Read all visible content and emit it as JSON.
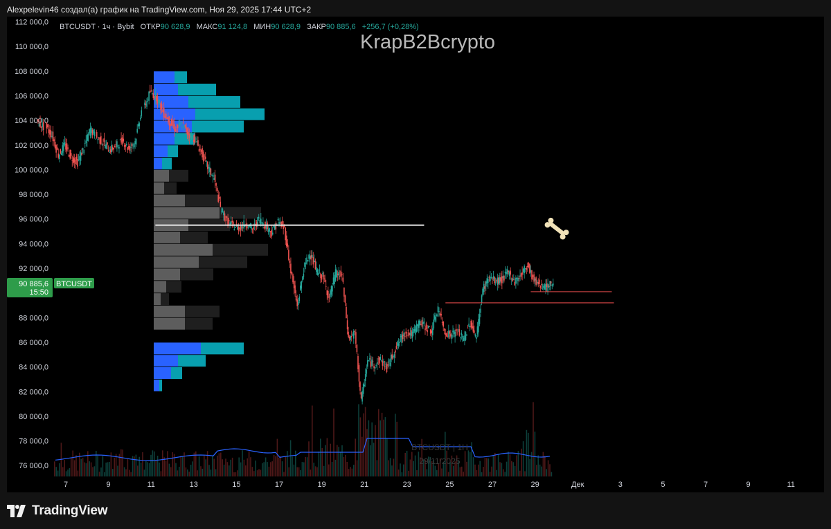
{
  "header": {
    "caption": "Alexpelevin46 создал(а) график на TradingView.com, Ноя 29, 2025 17:44 UTC+2"
  },
  "legend": {
    "symbol": "BTCUSDT · 1ч · Bybit",
    "open_label": "ОТКР",
    "open_value": "90 628,9",
    "high_label": "МАКС",
    "high_value": "91 124,8",
    "low_label": "МИН",
    "low_value": "90 628,9",
    "close_label": "ЗАКР",
    "close_value": "90 885,6",
    "change": "+256,7 (+0,28%)"
  },
  "watermark": {
    "author": "KrapB2Bcrypto",
    "line1": "BTCUSDT | 1H",
    "line2": "29/11/2025"
  },
  "price_badge": {
    "price": "90 885,6",
    "time": "15:50",
    "symbol": "BTCUSDT"
  },
  "brand": {
    "name": "TradingView"
  },
  "colors": {
    "up": "#26a69a",
    "down": "#ef5350",
    "badge": "#2e9c4a",
    "profile_blue": "#2962ff",
    "profile_teal": "#089faf",
    "profile_gray": "#5d5d5d",
    "profile_dark": "#1f1f1f",
    "level_white": "#e6e6e6",
    "level_red": "#e04a4a",
    "volume_ma": "#2962ff"
  },
  "chart_data": {
    "type": "line",
    "price_axis": {
      "labels": [
        "112 000,0",
        "110 000,0",
        "108 000,0",
        "106 000,0",
        "104 000,0",
        "102 000,0",
        "100 000,0",
        "98 000,0",
        "96 000,0",
        "94 000,0",
        "92 000,0",
        "88 000,0",
        "86 000,0",
        "84 000,0",
        "82 000,0",
        "80 000,0",
        "78 000,0",
        "76 000,0"
      ],
      "ylim": [
        75500,
        112500
      ]
    },
    "time_axis": {
      "labels": [
        "7",
        "9",
        "11",
        "13",
        "15",
        "17",
        "19",
        "21",
        "23",
        "25",
        "27",
        "29",
        "Дек",
        "3",
        "5",
        "7",
        "9",
        "11"
      ],
      "range": [
        "Nov 6",
        "Dec 12"
      ]
    },
    "series": [
      {
        "x": [
          6.0,
          6.4,
          6.7,
          7.0,
          7.3,
          7.6,
          7.9,
          8.2,
          8.5,
          8.8,
          9.1,
          9.4,
          9.7,
          10.0,
          10.3,
          10.6,
          11.0,
          11.3,
          11.6,
          11.9,
          12.2,
          12.5,
          12.8,
          13.1,
          13.4,
          13.7,
          14.0,
          14.3,
          14.6,
          14.9,
          15.2,
          15.5,
          15.8,
          16.1,
          16.4,
          16.7,
          17.0,
          17.3,
          17.6,
          17.9,
          18.2,
          18.5,
          18.8,
          19.1,
          19.4,
          19.7,
          20.0,
          20.3,
          20.6,
          20.9,
          21.2,
          21.5,
          21.8,
          22.1,
          22.4,
          22.7,
          23.0,
          23.3,
          23.6,
          23.9,
          24.2,
          24.5,
          24.8,
          25.1,
          25.4,
          25.7,
          26.0,
          26.3,
          26.6,
          26.9,
          27.2,
          27.5,
          27.8,
          28.1,
          28.4,
          28.7,
          29.0,
          29.3,
          29.6,
          29.9
        ],
        "close": [
          103500,
          102800,
          101200,
          102000,
          101000,
          100600,
          101800,
          103300,
          102600,
          102200,
          101600,
          101900,
          102400,
          101700,
          102300,
          104900,
          106300,
          105900,
          104700,
          103900,
          103300,
          103700,
          102900,
          102500,
          101400,
          100200,
          99300,
          96900,
          95800,
          95400,
          95300,
          95700,
          95100,
          96000,
          95500,
          94900,
          95800,
          95200,
          91800,
          88900,
          91900,
          93300,
          91800,
          91300,
          89600,
          91600,
          91400,
          86300,
          86700,
          81200,
          84500,
          84200,
          84600,
          83900,
          85100,
          86100,
          86900,
          86600,
          87600,
          87300,
          86900,
          88800,
          86900,
          86600,
          86900,
          86200,
          87600,
          86400,
          90300,
          91300,
          90900,
          91100,
          91700,
          90900,
          91500,
          92300,
          91000,
          90700,
          90400,
          90886
        ]
      }
    ],
    "volume_profile": [
      {
        "price": 107000,
        "up": 30,
        "down": 18
      },
      {
        "price": 106000,
        "up": 35,
        "down": 55
      },
      {
        "price": 105000,
        "up": 50,
        "down": 75
      },
      {
        "price": 104000,
        "up": 60,
        "down": 100
      },
      {
        "price": 103000,
        "up": 55,
        "down": 75
      },
      {
        "price": 102000,
        "up": 30,
        "down": 30
      },
      {
        "price": 101000,
        "up": 20,
        "down": 15
      },
      {
        "price": 100000,
        "up": 12,
        "down": 14
      },
      {
        "price": 99000,
        "up": 22,
        "down": 28
      },
      {
        "price": 98000,
        "up": 15,
        "down": 18
      },
      {
        "price": 97000,
        "up": 45,
        "down": 50
      },
      {
        "price": 96000,
        "up": 95,
        "down": 60
      },
      {
        "price": 95000,
        "up": 50,
        "down": 60
      },
      {
        "price": 94000,
        "up": 38,
        "down": 40
      },
      {
        "price": 93000,
        "up": 85,
        "down": 80
      },
      {
        "price": 92000,
        "up": 65,
        "down": 70
      },
      {
        "price": 91000,
        "up": 38,
        "down": 48
      },
      {
        "price": 90000,
        "up": 18,
        "down": 22
      },
      {
        "price": 89000,
        "up": 10,
        "down": 12
      },
      {
        "price": 88000,
        "up": 45,
        "down": 50
      },
      {
        "price": 87000,
        "up": 45,
        "down": 40
      },
      {
        "price": 85000,
        "up": 68,
        "down": 62
      },
      {
        "price": 84000,
        "up": 35,
        "down": 40
      },
      {
        "price": 83000,
        "up": 25,
        "down": 16
      },
      {
        "price": 82000,
        "up": 8,
        "down": 4
      }
    ],
    "levels": [
      {
        "price": 95500,
        "from": 11.2,
        "to": 23.8,
        "color": "white"
      },
      {
        "price": 90100,
        "from": 28.8,
        "to": 32.6,
        "color": "red"
      },
      {
        "price": 89200,
        "from": 24.8,
        "to": 32.7,
        "color": "red"
      }
    ],
    "ylabel": "",
    "xlabel": ""
  }
}
